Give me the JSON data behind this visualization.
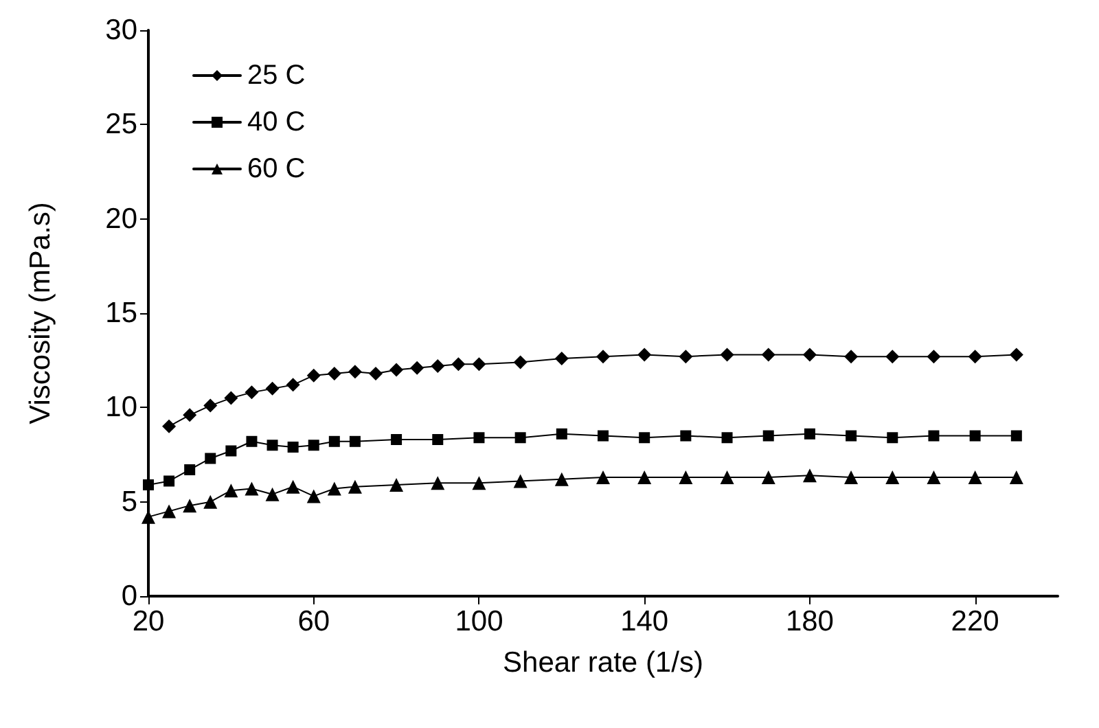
{
  "chart_data": {
    "type": "line",
    "xlabel": "Shear rate (1/s)",
    "ylabel": "Viscosity (mPa.s)",
    "xlim": [
      20,
      240
    ],
    "xticks": [
      20,
      60,
      100,
      140,
      180,
      220
    ],
    "ylim": [
      0,
      30
    ],
    "yticks": [
      0,
      5,
      10,
      15,
      20,
      25,
      30
    ],
    "grid": false,
    "legend": "top left",
    "line_style": "solid",
    "series": [
      {
        "name": "25 C",
        "color": "#000000",
        "marker": "diamond",
        "x": [
          25,
          30,
          35,
          40,
          45,
          50,
          55,
          60,
          65,
          70,
          75,
          80,
          85,
          90,
          95,
          100,
          110,
          120,
          130,
          140,
          150,
          160,
          170,
          180,
          190,
          200,
          210,
          220,
          230
        ],
        "values": [
          9.0,
          9.6,
          10.1,
          10.5,
          10.8,
          11.0,
          11.2,
          11.7,
          11.8,
          11.9,
          11.8,
          12.0,
          12.1,
          12.2,
          12.3,
          12.3,
          12.4,
          12.6,
          12.7,
          12.8,
          12.7,
          12.8,
          12.8,
          12.8,
          12.7,
          12.7,
          12.7,
          12.7,
          12.8
        ]
      },
      {
        "name": "40 C",
        "color": "#000000",
        "marker": "square",
        "x": [
          20,
          25,
          30,
          35,
          40,
          45,
          50,
          55,
          60,
          65,
          70,
          80,
          90,
          100,
          110,
          120,
          130,
          140,
          150,
          160,
          170,
          180,
          190,
          200,
          210,
          220,
          230
        ],
        "values": [
          5.9,
          6.1,
          6.7,
          7.3,
          7.7,
          8.2,
          8.0,
          7.9,
          8.0,
          8.2,
          8.2,
          8.3,
          8.3,
          8.4,
          8.4,
          8.6,
          8.5,
          8.4,
          8.5,
          8.4,
          8.5,
          8.6,
          8.5,
          8.4,
          8.5,
          8.5,
          8.5
        ]
      },
      {
        "name": "60 C",
        "color": "#000000",
        "marker": "triangle",
        "x": [
          20,
          25,
          30,
          35,
          40,
          45,
          50,
          55,
          60,
          65,
          70,
          80,
          90,
          100,
          110,
          120,
          130,
          140,
          150,
          160,
          170,
          180,
          190,
          200,
          210,
          220,
          230
        ],
        "values": [
          4.2,
          4.5,
          4.8,
          5.0,
          5.6,
          5.7,
          5.4,
          5.8,
          5.3,
          5.7,
          5.8,
          5.9,
          6.0,
          6.0,
          6.1,
          6.2,
          6.3,
          6.3,
          6.3,
          6.3,
          6.3,
          6.4,
          6.3,
          6.3,
          6.3,
          6.3,
          6.3
        ]
      }
    ]
  }
}
